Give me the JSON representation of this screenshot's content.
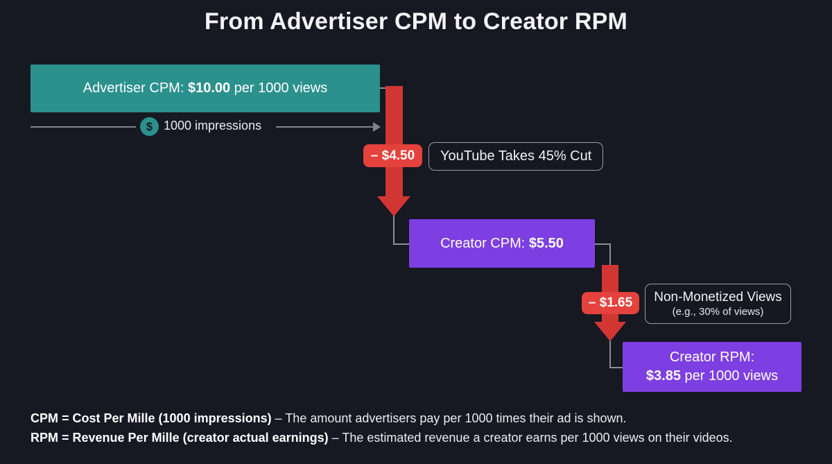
{
  "title": "From Advertiser CPM to Creator RPM",
  "colors": {
    "background": "#161822",
    "teal": "#2b918d",
    "purple": "#7d3fe2",
    "arrow_red": "#d23632",
    "badge_red": "#e4423c",
    "connector_gray": "#8a8f99"
  },
  "flow": {
    "advertiser_box": {
      "prefix": "Advertiser CPM: ",
      "amount": "$10.00",
      "suffix": " per 1000 views"
    },
    "impressions": {
      "icon_glyph": "$",
      "label": "1000 impressions"
    },
    "youtube_cut": {
      "badge": "– $4.50",
      "label": "YouTube Takes 45% Cut"
    },
    "creator_cpm_box": {
      "prefix": "Creator CPM: ",
      "amount": "$5.50"
    },
    "non_monetized": {
      "badge": "– $1.65",
      "label_line1": "Non-Monetized Views",
      "label_line2": "(e.g., 30% of views)"
    },
    "creator_rpm_box": {
      "line1": "Creator RPM:",
      "amount": "$3.85",
      "suffix": " per 1000 views"
    }
  },
  "footer": {
    "line1_bold": "CPM = Cost Per Mille (1000 impressions)",
    "line1_rest": " – The amount advertisers pay per 1000 times their ad is shown.",
    "line2_bold": "RPM = Revenue Per Mille (creator actual earnings)",
    "line2_rest": " – The estimated revenue a creator earns per 1000 views on their videos."
  }
}
